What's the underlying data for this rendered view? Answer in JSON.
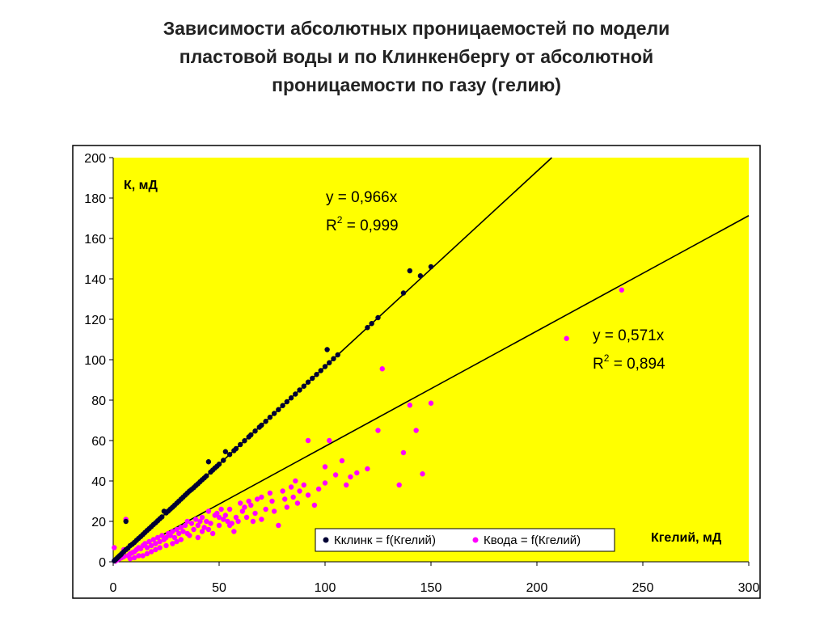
{
  "title_lines": [
    "Зависимости абсолютных проницаемостей по модели",
    "пластовой воды и по Клинкенбергу от абсолютной",
    "проницаемости по газу (гелию)"
  ],
  "chart_data": {
    "type": "scatter",
    "title": "Зависимости абсолютных проницаемостей по модели пластовой воды и по Клинкенбергу от абсолютной проницаемости по газу (гелию)",
    "xlabel": "Кгелий, мД",
    "ylabel": "К, мД",
    "xlim": [
      0,
      300
    ],
    "ylim": [
      0,
      200
    ],
    "x_ticks": [
      0,
      50,
      100,
      150,
      200,
      250,
      300
    ],
    "y_ticks": [
      0,
      20,
      40,
      60,
      80,
      100,
      120,
      140,
      160,
      180,
      200
    ],
    "grid": false,
    "legend_position": "bottom-center",
    "plot_background": "#ffff00",
    "series": [
      {
        "name": "Кклинк = f(Кгелий)",
        "color": "#000033",
        "equation": "y = 0,966x",
        "r2_label": "R",
        "r2_sup": "2",
        "r2_value": " = 0,999",
        "trend_slope": 0.966,
        "points": [
          [
            0.5,
            0.5
          ],
          [
            1,
            1
          ],
          [
            1.5,
            1.4
          ],
          [
            2,
            2
          ],
          [
            2.5,
            2.4
          ],
          [
            3,
            3
          ],
          [
            3.5,
            3.4
          ],
          [
            4,
            4
          ],
          [
            5,
            5
          ],
          [
            6,
            6
          ],
          [
            6,
            20
          ],
          [
            7,
            6.8
          ],
          [
            8,
            8
          ],
          [
            9,
            8.7
          ],
          [
            10,
            9.6
          ],
          [
            11,
            10.6
          ],
          [
            12,
            11.6
          ],
          [
            13,
            12.5
          ],
          [
            14,
            13.5
          ],
          [
            15,
            14.5
          ],
          [
            16,
            15.5
          ],
          [
            17,
            16.4
          ],
          [
            18,
            17.4
          ],
          [
            19,
            18.4
          ],
          [
            20,
            19.3
          ],
          [
            21,
            20.3
          ],
          [
            22,
            21.3
          ],
          [
            23,
            22.2
          ],
          [
            24,
            25
          ],
          [
            25,
            24.2
          ],
          [
            26,
            25.1
          ],
          [
            27,
            26.1
          ],
          [
            28,
            27
          ],
          [
            29,
            28
          ],
          [
            30,
            29
          ],
          [
            31,
            30
          ],
          [
            32,
            31
          ],
          [
            33,
            32
          ],
          [
            34,
            33
          ],
          [
            35,
            34
          ],
          [
            36,
            35
          ],
          [
            37,
            35.8
          ],
          [
            38,
            36.7
          ],
          [
            39,
            37.7
          ],
          [
            40,
            38.6
          ],
          [
            41,
            39.6
          ],
          [
            42,
            40.6
          ],
          [
            43,
            41.5
          ],
          [
            44,
            42.5
          ],
          [
            45,
            49.5
          ],
          [
            46,
            44.4
          ],
          [
            47,
            45.4
          ],
          [
            48,
            46.4
          ],
          [
            49,
            47.3
          ],
          [
            50,
            48.3
          ],
          [
            52,
            50.2
          ],
          [
            53,
            54.5
          ],
          [
            55,
            53.1
          ],
          [
            57,
            55
          ],
          [
            58,
            56
          ],
          [
            60,
            58
          ],
          [
            62,
            59.9
          ],
          [
            64,
            61.8
          ],
          [
            65,
            62.8
          ],
          [
            67,
            64.7
          ],
          [
            69,
            66.6
          ],
          [
            70,
            67.6
          ],
          [
            72,
            69.5
          ],
          [
            74,
            71.5
          ],
          [
            76,
            73.4
          ],
          [
            78,
            75.3
          ],
          [
            80,
            77.3
          ],
          [
            82,
            79.2
          ],
          [
            84,
            81.1
          ],
          [
            86,
            83
          ],
          [
            88,
            85
          ],
          [
            90,
            86.9
          ],
          [
            92,
            88.9
          ],
          [
            94,
            90.8
          ],
          [
            96,
            92.7
          ],
          [
            98,
            94.6
          ],
          [
            100,
            96.6
          ],
          [
            101,
            105
          ],
          [
            102,
            98.5
          ],
          [
            104,
            100.5
          ],
          [
            106,
            102.4
          ],
          [
            120,
            115.9
          ],
          [
            122,
            117.9
          ],
          [
            125,
            120.8
          ],
          [
            137,
            133
          ],
          [
            140,
            144
          ],
          [
            145,
            141.5
          ],
          [
            150,
            146
          ]
        ]
      },
      {
        "name": "Квода = f(Кгелий)",
        "color": "#ff00ff",
        "equation": "y = 0,571x",
        "r2_label": "R",
        "r2_sup": "2",
        "r2_value": " = 0,894",
        "trend_slope": 0.571,
        "points": [
          [
            0.5,
            7
          ],
          [
            1,
            0.3
          ],
          [
            2,
            1
          ],
          [
            3,
            1.5
          ],
          [
            4,
            2
          ],
          [
            5,
            2.5
          ],
          [
            5,
            6
          ],
          [
            6,
            21
          ],
          [
            7,
            3
          ],
          [
            8,
            4
          ],
          [
            8,
            1.5
          ],
          [
            9,
            4.5
          ],
          [
            10,
            5
          ],
          [
            10,
            2
          ],
          [
            11,
            6
          ],
          [
            12,
            7
          ],
          [
            12,
            3
          ],
          [
            13,
            6.5
          ],
          [
            14,
            8
          ],
          [
            14,
            3
          ],
          [
            15,
            9
          ],
          [
            16,
            7
          ],
          [
            16,
            4
          ],
          [
            17,
            10
          ],
          [
            18,
            8
          ],
          [
            18,
            5
          ],
          [
            19,
            11
          ],
          [
            20,
            9
          ],
          [
            20,
            6
          ],
          [
            21,
            12
          ],
          [
            22,
            10
          ],
          [
            22,
            7
          ],
          [
            23,
            13
          ],
          [
            24,
            11
          ],
          [
            25,
            12
          ],
          [
            25,
            8
          ],
          [
            26,
            14
          ],
          [
            27,
            13
          ],
          [
            28,
            15
          ],
          [
            28,
            9
          ],
          [
            29,
            12
          ],
          [
            30,
            16
          ],
          [
            30,
            10
          ],
          [
            31,
            14
          ],
          [
            32,
            17
          ],
          [
            32,
            11
          ],
          [
            33,
            15
          ],
          [
            34,
            18
          ],
          [
            35,
            14
          ],
          [
            35,
            20
          ],
          [
            36,
            13
          ],
          [
            37,
            19
          ],
          [
            38,
            16
          ],
          [
            39,
            21
          ],
          [
            40,
            18
          ],
          [
            40,
            12
          ],
          [
            41,
            20
          ],
          [
            42,
            22
          ],
          [
            42,
            15
          ],
          [
            43,
            17
          ],
          [
            44,
            20
          ],
          [
            45,
            25
          ],
          [
            45,
            16
          ],
          [
            46,
            19
          ],
          [
            47,
            14
          ],
          [
            48,
            23
          ],
          [
            49,
            24
          ],
          [
            50,
            18
          ],
          [
            50,
            22
          ],
          [
            51,
            26
          ],
          [
            52,
            21
          ],
          [
            53,
            23
          ],
          [
            54,
            20
          ],
          [
            55,
            18
          ],
          [
            55,
            26
          ],
          [
            56,
            19
          ],
          [
            57,
            15
          ],
          [
            58,
            22
          ],
          [
            59,
            20
          ],
          [
            60,
            29
          ],
          [
            61,
            25
          ],
          [
            62,
            27
          ],
          [
            63,
            22
          ],
          [
            64,
            30
          ],
          [
            65,
            28
          ],
          [
            66,
            20
          ],
          [
            67,
            24
          ],
          [
            68,
            31
          ],
          [
            70,
            32
          ],
          [
            70,
            21
          ],
          [
            72,
            26
          ],
          [
            74,
            34
          ],
          [
            75,
            30
          ],
          [
            76,
            25
          ],
          [
            78,
            18
          ],
          [
            80,
            35
          ],
          [
            81,
            31
          ],
          [
            82,
            27
          ],
          [
            84,
            37
          ],
          [
            85,
            32
          ],
          [
            86,
            40
          ],
          [
            87,
            29
          ],
          [
            88,
            35
          ],
          [
            90,
            38
          ],
          [
            92,
            33
          ],
          [
            92,
            60
          ],
          [
            95,
            28
          ],
          [
            97,
            36
          ],
          [
            100,
            39
          ],
          [
            100,
            47
          ],
          [
            102,
            60
          ],
          [
            105,
            43
          ],
          [
            108,
            50
          ],
          [
            110,
            38
          ],
          [
            112,
            42
          ],
          [
            115,
            44
          ],
          [
            120,
            46
          ],
          [
            125,
            65
          ],
          [
            127,
            95.5
          ],
          [
            135,
            38
          ],
          [
            137,
            54
          ],
          [
            140,
            77.5
          ],
          [
            143,
            65
          ],
          [
            146,
            43.5
          ],
          [
            150,
            78.5
          ],
          [
            214,
            110.5
          ],
          [
            240,
            134.5
          ]
        ]
      }
    ]
  }
}
